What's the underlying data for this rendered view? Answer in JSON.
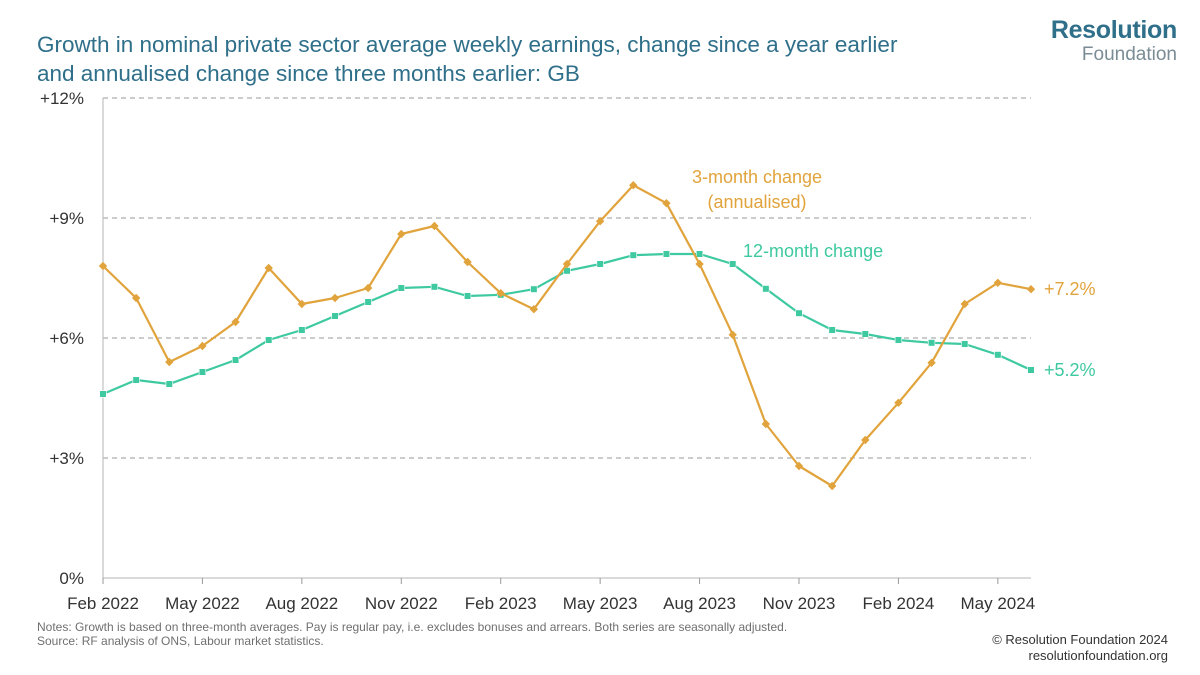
{
  "header": {
    "title_line1": "Growth in nominal private sector average weekly earnings, change since a year earlier",
    "title_line2": "and annualised change since three months earlier: GB"
  },
  "logo": {
    "line1": "Resolution",
    "line2": "Foundation"
  },
  "footer": {
    "notes": "Notes: Growth is based on three-month averages. Pay is regular pay, i.e. excludes bonuses and arrears. Both series are seasonally adjusted.",
    "source": "Source: RF analysis of ONS, Labour market statistics.",
    "copyright": "© Resolution Foundation 2024",
    "website": "resolutionfoundation.org"
  },
  "chart_data": {
    "type": "line",
    "title": "Growth in nominal private sector average weekly earnings, change since a year earlier and annualised change since three months earlier: GB",
    "xlabel": "",
    "ylabel": "",
    "ylim": [
      0,
      12
    ],
    "yticks": [
      0,
      3,
      6,
      9,
      12
    ],
    "ytick_labels": [
      "0%",
      "+3%",
      "+6%",
      "+9%",
      "+12%"
    ],
    "grid": "horizontal dashed",
    "x": [
      "Feb 2022",
      "Mar 2022",
      "Apr 2022",
      "May 2022",
      "Jun 2022",
      "Jul 2022",
      "Aug 2022",
      "Sep 2022",
      "Oct 2022",
      "Nov 2022",
      "Dec 2022",
      "Jan 2023",
      "Feb 2023",
      "Mar 2023",
      "Apr 2023",
      "May 2023",
      "Jun 2023",
      "Jul 2023",
      "Aug 2023",
      "Sep 2023",
      "Oct 2023",
      "Nov 2023",
      "Dec 2023",
      "Jan 2024",
      "Feb 2024",
      "Mar 2024",
      "Apr 2024",
      "May 2024",
      "Jun 2024"
    ],
    "xtick_labels": [
      "Feb 2022",
      "May 2022",
      "Aug 2022",
      "Nov 2022",
      "Feb 2023",
      "May 2023",
      "Aug 2023",
      "Nov 2023",
      "Feb 2024",
      "May 2024"
    ],
    "xtick_index": [
      0,
      3,
      6,
      9,
      12,
      15,
      18,
      21,
      24,
      27
    ],
    "series": [
      {
        "name": "12-month change",
        "color": "#3ec9a0",
        "marker": "square",
        "values": [
          4.6,
          4.95,
          4.85,
          5.15,
          5.45,
          5.95,
          6.2,
          6.55,
          6.9,
          7.25,
          7.28,
          7.05,
          7.08,
          7.22,
          7.68,
          7.85,
          8.07,
          8.1,
          8.1,
          7.85,
          7.23,
          6.62,
          6.2,
          6.1,
          5.95,
          5.88,
          5.85,
          5.58,
          5.2
        ],
        "label_lines": [
          "12-month change"
        ],
        "end_label": "+5.2%"
      },
      {
        "name": "3-month change (annualised)",
        "color": "#e1a33b",
        "marker": "diamond",
        "values": [
          7.8,
          7.0,
          5.4,
          5.8,
          6.4,
          7.75,
          6.85,
          7.0,
          7.25,
          8.6,
          8.8,
          7.9,
          7.12,
          6.72,
          7.85,
          8.92,
          9.82,
          9.37,
          7.85,
          6.08,
          3.85,
          2.8,
          2.3,
          3.45,
          4.38,
          5.38,
          6.85,
          7.38,
          7.22
        ],
        "label_lines": [
          "3-month change",
          "(annualised)"
        ],
        "end_label": "+7.2%"
      }
    ]
  }
}
